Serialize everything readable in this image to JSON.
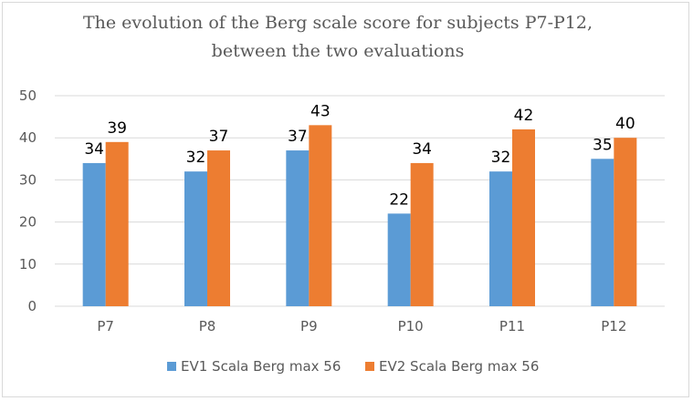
{
  "chart_data": {
    "type": "bar",
    "title_lines": [
      "The evolution of the Berg scale score for subjects P7-P12,",
      "between the two evaluations"
    ],
    "categories": [
      "P7",
      "P8",
      "P9",
      "P10",
      "P11",
      "P12"
    ],
    "series": [
      {
        "name": "EV1 Scala Berg max 56",
        "color": "#5b9bd5",
        "values": [
          34,
          32,
          37,
          22,
          32,
          35
        ]
      },
      {
        "name": "EV2 Scala Berg max 56",
        "color": "#ed7d31",
        "values": [
          39,
          37,
          43,
          34,
          42,
          40
        ]
      }
    ],
    "ylim": [
      0,
      50
    ],
    "yticks": [
      0,
      10,
      20,
      30,
      40,
      50
    ],
    "grid": true,
    "legend": "bottom",
    "xlabel": "",
    "ylabel": ""
  }
}
